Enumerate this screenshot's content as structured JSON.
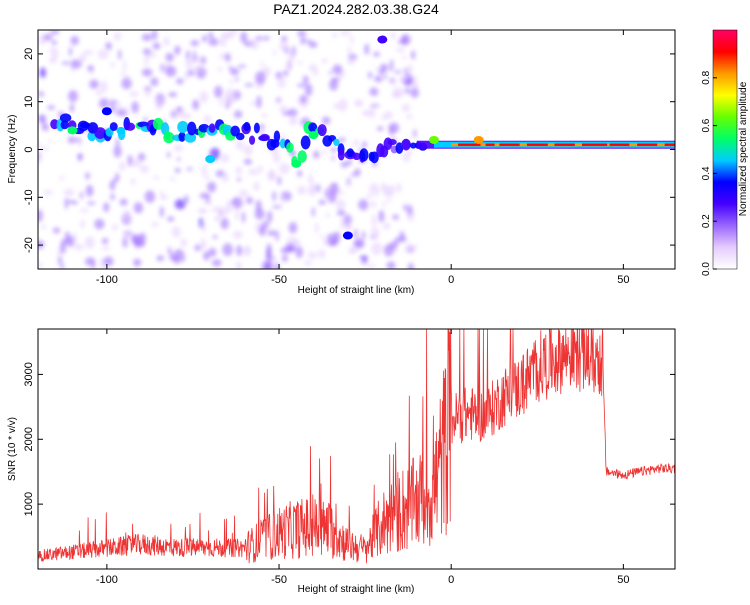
{
  "figure": {
    "title": "PAZ1.2024.282.03.38.G24"
  },
  "chart_data": [
    {
      "type": "heatmap",
      "xlabel": "Height of straight line (km)",
      "ylabel": "Frequency (Hz)",
      "xlim": [
        -120,
        65
      ],
      "ylim": [
        -25,
        25
      ],
      "xticks": [
        -100,
        -50,
        0,
        50
      ],
      "yticks": [
        -20,
        -10,
        0,
        10,
        20
      ],
      "colorbar": {
        "label": "Normalized spectral amplitude",
        "range": [
          0,
          1
        ],
        "ticks": [
          "0.0",
          "0.2",
          "0.4",
          "0.6",
          "0.8"
        ],
        "tick_values": [
          0.0,
          0.2,
          0.4,
          0.6,
          0.8
        ],
        "colors": [
          "#ffffff",
          "#e6ccff",
          "#9966ff",
          "#4400ff",
          "#0000ff",
          "#00ccff",
          "#00ff66",
          "#66ff00",
          "#ffff00",
          "#ff9900",
          "#ff0000",
          "#ff0066"
        ]
      },
      "ridge": [
        {
          "x": -115,
          "y": 6,
          "a": 0.35
        },
        {
          "x": -105,
          "y": 4,
          "a": 0.4
        },
        {
          "x": -95,
          "y": 4,
          "a": 0.45
        },
        {
          "x": -85,
          "y": 4,
          "a": 0.5
        },
        {
          "x": -75,
          "y": 3,
          "a": 0.45
        },
        {
          "x": -65,
          "y": 4,
          "a": 0.45
        },
        {
          "x": -55,
          "y": 3,
          "a": 0.4
        },
        {
          "x": -50,
          "y": 2,
          "a": 0.45
        },
        {
          "x": -45,
          "y": -2,
          "a": 0.5
        },
        {
          "x": -40,
          "y": 5,
          "a": 0.45
        },
        {
          "x": -35,
          "y": 2,
          "a": 0.4
        },
        {
          "x": -30,
          "y": -1,
          "a": 0.35
        },
        {
          "x": -25,
          "y": -2,
          "a": 0.4
        },
        {
          "x": -15,
          "y": 1,
          "a": 0.3
        },
        {
          "x": -10,
          "y": 0,
          "a": 0.3
        },
        {
          "x": 0,
          "y": 1,
          "a": 0.65
        },
        {
          "x": 10,
          "y": 1,
          "a": 0.75
        },
        {
          "x": 20,
          "y": 1,
          "a": 0.85
        },
        {
          "x": 30,
          "y": 1,
          "a": 0.9
        },
        {
          "x": 40,
          "y": 1,
          "a": 0.85
        },
        {
          "x": 50,
          "y": 1,
          "a": 0.8
        },
        {
          "x": 60,
          "y": 1,
          "a": 0.75
        }
      ],
      "features": [
        {
          "x": -30,
          "y": -18,
          "a": 0.35
        },
        {
          "x": -45,
          "y": -3,
          "a": 0.55
        },
        {
          "x": -40,
          "y": 3,
          "a": 0.5
        },
        {
          "x": -70,
          "y": -2,
          "a": 0.45
        },
        {
          "x": -110,
          "y": 4,
          "a": 0.5
        },
        {
          "x": -100,
          "y": 8,
          "a": 0.4
        },
        {
          "x": -20,
          "y": 23,
          "a": 0.3
        },
        {
          "x": 8,
          "y": 2,
          "a": 0.8
        },
        {
          "x": -5,
          "y": 2,
          "a": 0.6
        }
      ]
    },
    {
      "type": "line",
      "xlabel": "Height of straight line (km)",
      "ylabel": "SNR (10 * v/v)",
      "xlim": [
        -120,
        65
      ],
      "ylim": [
        0,
        3700
      ],
      "xticks": [
        -100,
        -50,
        0,
        50
      ],
      "yticks": [
        1000,
        2000,
        3000
      ],
      "color": "#ee3333",
      "series": [
        {
          "x": [
            -120,
            -110,
            -100,
            -90,
            -80,
            -70,
            -60,
            -55,
            -50,
            -45,
            -40,
            -35,
            -30,
            -25,
            -20,
            -15,
            -10,
            -5,
            0,
            5,
            10,
            15,
            20,
            25,
            30,
            35,
            40,
            43,
            44,
            45,
            50,
            55,
            60,
            65
          ],
          "y": [
            200,
            260,
            320,
            380,
            330,
            330,
            320,
            450,
            560,
            620,
            650,
            600,
            380,
            300,
            700,
            900,
            1000,
            1200,
            2300,
            2400,
            2350,
            2650,
            2800,
            3100,
            3250,
            3350,
            3300,
            3200,
            3200,
            1500,
            1450,
            1500,
            1550,
            1550
          ]
        }
      ]
    }
  ]
}
